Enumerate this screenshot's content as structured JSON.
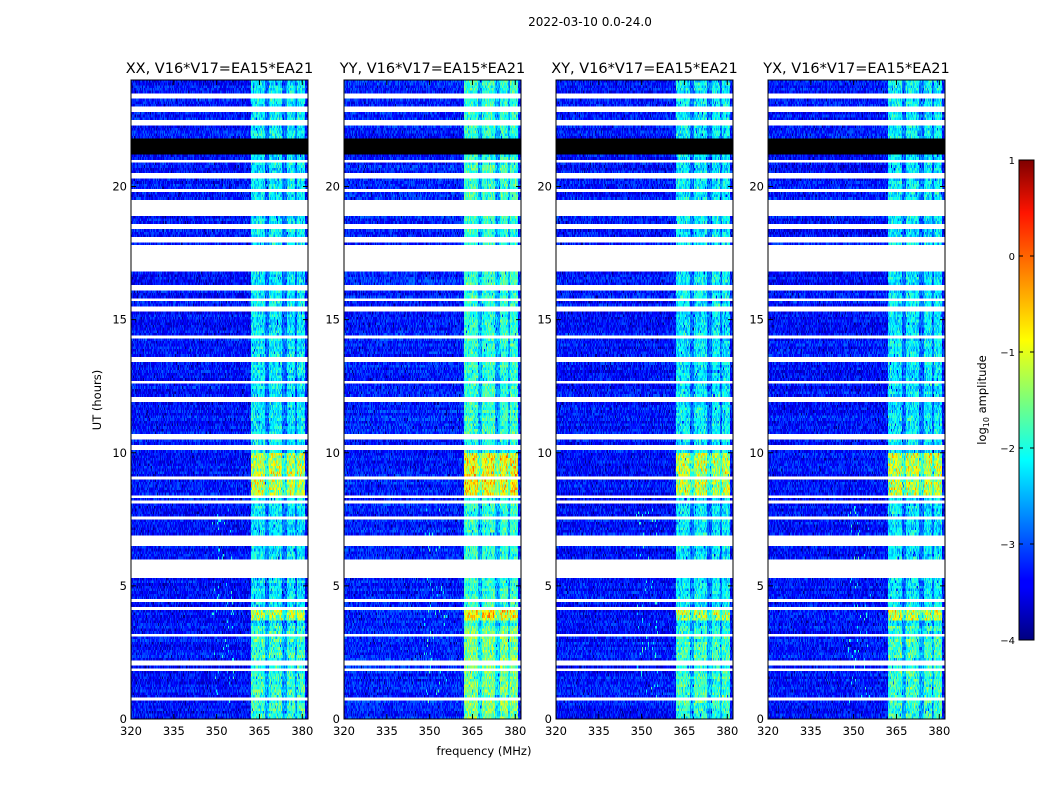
{
  "figure": {
    "suptitle": "2022-03-10 0.0-24.0"
  },
  "chart_data": {
    "type": "heatmap",
    "xlabel": "frequency (MHz)",
    "ylabel": "UT (hours)",
    "xlim": [
      320,
      382
    ],
    "ylim": [
      0,
      24
    ],
    "xticks": [
      320,
      335,
      350,
      365,
      380
    ],
    "yticks": [
      0,
      5,
      10,
      15,
      20
    ],
    "panels": [
      {
        "title": "XX, V16*V17=EA15*EA21",
        "pol": "XX"
      },
      {
        "title": "YY, V16*V17=EA15*EA21",
        "pol": "YY"
      },
      {
        "title": "XY, V16*V17=EA15*EA21",
        "pol": "XY"
      },
      {
        "title": "YX, V16*V17=EA15*EA21",
        "pol": "YX"
      }
    ],
    "colorbar": {
      "label_main": "log",
      "label_sub": "10",
      "label_rest": " amplitude",
      "range": [
        -4,
        1
      ],
      "ticks": [
        "1",
        "0",
        "−1",
        "−2",
        "−3",
        "−4"
      ],
      "colormap": "jet"
    },
    "background_level": -3.3,
    "rfi_band_mhz": [
      362,
      381
    ],
    "rfi_subbands_mhz": [
      [
        362,
        367
      ],
      [
        368.5,
        373
      ],
      [
        374.5,
        377.5
      ],
      [
        378,
        381
      ]
    ],
    "bright_periods_ut": [
      [
        8.3,
        10.0
      ],
      [
        3.7,
        4.1
      ]
    ],
    "flagged_bands_ut": [
      [
        0.7,
        0.75
      ],
      [
        1.8,
        1.95
      ],
      [
        2.05,
        2.15
      ],
      [
        3.1,
        3.2
      ],
      [
        3.65,
        3.7
      ],
      [
        4.1,
        4.2
      ],
      [
        4.4,
        4.5
      ],
      [
        5.3,
        6.0
      ],
      [
        6.55,
        6.9
      ],
      [
        7.5,
        7.6
      ],
      [
        8.1,
        8.2
      ],
      [
        8.3,
        8.4
      ],
      [
        9.0,
        9.05
      ],
      [
        10.1,
        10.35
      ],
      [
        10.55,
        10.65
      ],
      [
        11.9,
        12.05
      ],
      [
        12.55,
        12.65
      ],
      [
        13.4,
        13.55
      ],
      [
        14.3,
        14.4
      ],
      [
        15.35,
        15.45
      ],
      [
        15.75,
        15.8
      ],
      [
        16.1,
        16.25
      ],
      [
        16.85,
        17.75
      ],
      [
        17.9,
        18.1
      ],
      [
        18.4,
        18.6
      ],
      [
        18.9,
        19.5
      ],
      [
        19.85,
        19.9
      ],
      [
        20.35,
        20.45
      ],
      [
        20.95,
        21.0
      ],
      [
        22.35,
        22.45
      ],
      [
        22.85,
        22.95
      ],
      [
        23.35,
        23.45
      ]
    ],
    "dead_bands_ut": [
      [
        21.2,
        21.8
      ]
    ]
  }
}
